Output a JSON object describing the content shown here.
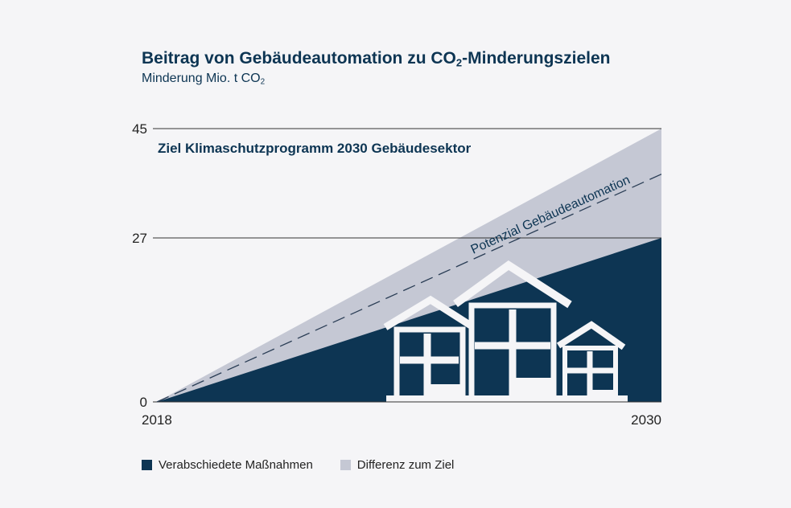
{
  "header": {
    "title_part1": "Beitrag von Gebäudeautomation zu CO",
    "title_sub": "2",
    "title_part2": "-Minderungszielen",
    "subtitle_part1": "Minderung Mio. t CO",
    "subtitle_sub": "2"
  },
  "chart_data": {
    "type": "area",
    "title": "Beitrag von Gebäudeautomation zu CO2-Minderungszielen",
    "ylabel": "Minderung Mio. t CO2",
    "x": [
      2018,
      2030
    ],
    "x_tick_labels": [
      "2018",
      "2030"
    ],
    "y_ticks": [
      0,
      27,
      45
    ],
    "y_tick_labels": [
      "0",
      "27",
      "45"
    ],
    "ylim": [
      0,
      45
    ],
    "series": [
      {
        "name": "Verabschiedete Maßnahmen",
        "values": [
          0,
          27
        ],
        "color": "#0d3553"
      },
      {
        "name": "Differenz zum Ziel",
        "values": [
          0,
          45
        ],
        "color": "#c5c8d4"
      }
    ],
    "potential_line": {
      "label": "Potenzial Gebäudeautomation",
      "values": [
        0,
        37.5
      ],
      "style": "dashed"
    },
    "target_line": {
      "label": "Ziel Klimaschutzprogramm 2030 Gebäudesektor",
      "value": 45
    },
    "reference_line": {
      "value": 27
    },
    "legend": "bottom-left",
    "grid": false
  },
  "legend": {
    "items": [
      {
        "label": "Verabschiedete Maßnahmen",
        "color": "#0d3553"
      },
      {
        "label": "Differenz zum Ziel",
        "color": "#c5c8d4"
      }
    ]
  }
}
